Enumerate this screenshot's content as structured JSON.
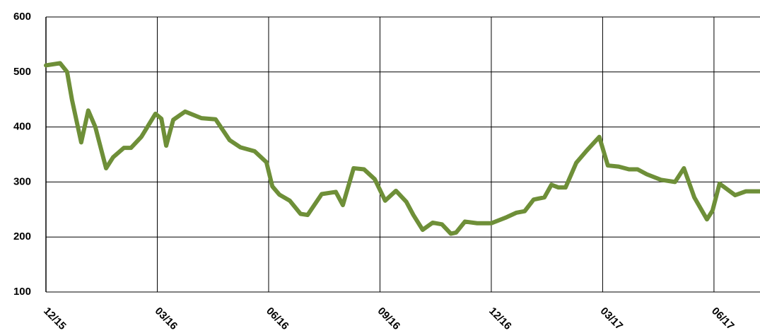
{
  "chart_data": {
    "type": "line",
    "xlim": [
      0,
      19.24
    ],
    "xticks": [
      {
        "value": 0,
        "label": "12/15"
      },
      {
        "value": 3,
        "label": "03/16"
      },
      {
        "value": 6,
        "label": "06/16"
      },
      {
        "value": 9,
        "label": "09/16"
      },
      {
        "value": 12,
        "label": "12/16"
      },
      {
        "value": 15,
        "label": "03/17"
      },
      {
        "value": 18,
        "label": "06/17"
      }
    ],
    "ylim": [
      100,
      600
    ],
    "yticks": [
      100,
      200,
      300,
      400,
      500,
      600
    ],
    "grid": true,
    "series": [
      {
        "color": "#6e8f38",
        "x": [
          0,
          0.38,
          0.57,
          0.7,
          0.95,
          1.14,
          1.33,
          1.62,
          1.81,
          2.1,
          2.29,
          2.57,
          2.95,
          3.11,
          3.24,
          3.43,
          3.75,
          4.19,
          4.57,
          4.95,
          5.24,
          5.62,
          5.94,
          6.1,
          6.29,
          6.57,
          6.86,
          7.05,
          7.43,
          7.81,
          8.0,
          8.29,
          8.57,
          8.86,
          9.14,
          9.43,
          9.71,
          9.9,
          10.15,
          10.42,
          10.67,
          10.91,
          11.05,
          11.29,
          11.62,
          12.0,
          12.38,
          12.67,
          12.9,
          13.14,
          13.43,
          13.62,
          13.81,
          14.0,
          14.29,
          14.57,
          14.91,
          15.14,
          15.43,
          15.71,
          15.94,
          16.19,
          16.57,
          16.95,
          17.19,
          17.47,
          17.81,
          17.96,
          18.15,
          18.57,
          18.86,
          19.24
        ],
        "values": [
          512,
          516,
          500,
          450,
          372,
          430,
          400,
          325,
          345,
          362,
          362,
          382,
          424,
          415,
          366,
          413,
          428,
          416,
          414,
          376,
          363,
          356,
          336,
          292,
          277,
          266,
          242,
          240,
          278,
          282,
          258,
          325,
          323,
          305,
          266,
          284,
          264,
          240,
          213,
          226,
          223,
          206,
          208,
          228,
          225,
          225,
          235,
          244,
          247,
          268,
          272,
          295,
          290,
          290,
          335,
          357,
          382,
          330,
          328,
          323,
          323,
          314,
          304,
          300,
          325,
          272,
          232,
          248,
          297,
          276,
          283,
          283
        ]
      }
    ]
  }
}
